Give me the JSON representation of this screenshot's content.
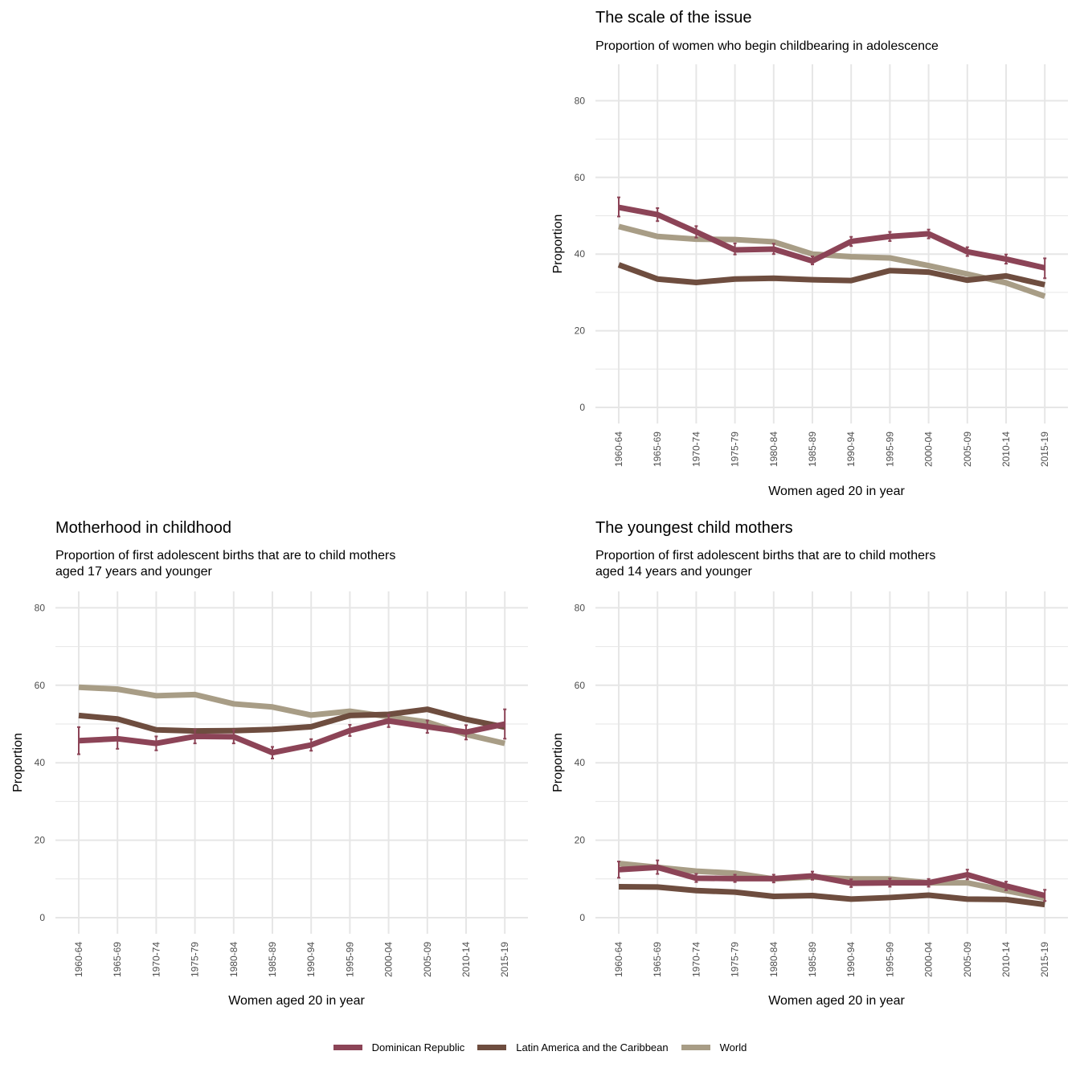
{
  "colors": {
    "Dominican Republic": "#8c4457",
    "Latin America and the Caribbean": "#6e4d3f",
    "World": "#a89d86",
    "grid": "#e6e6e6"
  },
  "legend": {
    "items": [
      {
        "label": "Dominican Republic"
      },
      {
        "label": "Latin America and the Caribbean"
      },
      {
        "label": "World"
      }
    ]
  },
  "chart_data": [
    {
      "type": "line",
      "title": "The scale of the issue",
      "subtitle": "Proportion of women who begin childbearing in adolescence",
      "xlabel": "Women aged 20 in year",
      "ylabel": "Proportion",
      "ylim": [
        0,
        80
      ],
      "yticks": [
        0,
        20,
        40,
        60,
        80
      ],
      "grid": true,
      "categories": [
        "1960-64",
        "1965-69",
        "1970-74",
        "1975-79",
        "1980-84",
        "1985-89",
        "1990-94",
        "1995-99",
        "2000-04",
        "2005-09",
        "2010-14",
        "2015-19"
      ],
      "series": [
        {
          "name": "World",
          "values": [
            47.2,
            44.6,
            43.9,
            43.8,
            43.2,
            40.0,
            39.3,
            39.0,
            37.0,
            34.8,
            32.5,
            29.0
          ]
        },
        {
          "name": "Latin America and the Caribbean",
          "values": [
            37.2,
            33.5,
            32.6,
            33.5,
            33.7,
            33.3,
            33.1,
            35.7,
            35.3,
            33.2,
            34.3,
            32.0
          ]
        },
        {
          "name": "Dominican Republic",
          "values": [
            52.2,
            50.3,
            45.8,
            41.1,
            41.3,
            38.2,
            43.3,
            44.6,
            45.3,
            40.6,
            38.7,
            36.4
          ],
          "error": [
            [
              49.8,
              54.8
            ],
            [
              48.6,
              52.0
            ],
            [
              44.3,
              47.3
            ],
            [
              39.9,
              42.8
            ],
            [
              40.0,
              42.7
            ],
            [
              37.3,
              39.4
            ],
            [
              42.1,
              44.5
            ],
            [
              43.4,
              45.8
            ],
            [
              44.1,
              46.4
            ],
            [
              39.5,
              41.8
            ],
            [
              37.5,
              39.9
            ],
            [
              33.7,
              38.9
            ]
          ]
        }
      ]
    },
    {
      "type": "line",
      "title": "Motherhood in childhood",
      "subtitle": "Proportion of first adolescent births that are to child mothers\naged 17 years and younger",
      "xlabel": "Women aged 20 in year",
      "ylabel": "Proportion",
      "ylim": [
        0,
        80
      ],
      "yticks": [
        0,
        20,
        40,
        60,
        80
      ],
      "grid": true,
      "categories": [
        "1960-64",
        "1965-69",
        "1970-74",
        "1975-79",
        "1980-84",
        "1985-89",
        "1990-94",
        "1995-99",
        "2000-04",
        "2005-09",
        "2010-14",
        "2015-19"
      ],
      "series": [
        {
          "name": "World",
          "values": [
            59.5,
            59.0,
            57.3,
            57.6,
            55.2,
            54.4,
            52.3,
            53.3,
            51.9,
            50.5,
            47.3,
            45.0
          ]
        },
        {
          "name": "Latin America and the Caribbean",
          "values": [
            52.2,
            51.3,
            48.5,
            48.2,
            48.3,
            48.6,
            49.3,
            52.2,
            52.5,
            53.8,
            51.2,
            49.2
          ]
        },
        {
          "name": "Dominican Republic",
          "values": [
            45.7,
            46.2,
            45.0,
            46.8,
            46.7,
            42.6,
            44.6,
            48.3,
            50.8,
            49.3,
            47.9,
            50.0
          ],
          "error": [
            [
              42.2,
              49.2
            ],
            [
              43.6,
              48.9
            ],
            [
              43.2,
              46.8
            ],
            [
              45.0,
              48.6
            ],
            [
              45.0,
              48.5
            ],
            [
              41.1,
              44.1
            ],
            [
              43.1,
              46.1
            ],
            [
              46.9,
              49.8
            ],
            [
              49.2,
              52.4
            ],
            [
              47.7,
              50.9
            ],
            [
              46.0,
              49.7
            ],
            [
              46.2,
              53.8
            ]
          ]
        }
      ]
    },
    {
      "type": "line",
      "title": "The youngest child mothers",
      "subtitle": "Proportion of first adolescent births that are to child mothers\naged 14 years and younger",
      "xlabel": "Women aged 20 in year",
      "ylabel": "Proportion",
      "ylim": [
        0,
        80
      ],
      "yticks": [
        0,
        20,
        40,
        60,
        80
      ],
      "grid": true,
      "categories": [
        "1960-64",
        "1965-69",
        "1970-74",
        "1975-79",
        "1980-84",
        "1985-89",
        "1990-94",
        "1995-99",
        "2000-04",
        "2005-09",
        "2010-14",
        "2015-19"
      ],
      "series": [
        {
          "name": "World",
          "values": [
            14.0,
            13.0,
            12.0,
            11.5,
            10.0,
            10.5,
            10.0,
            10.0,
            9.0,
            9.0,
            7.0,
            5.0
          ]
        },
        {
          "name": "Latin America and the Caribbean",
          "values": [
            8.0,
            7.9,
            7.0,
            6.6,
            5.5,
            5.7,
            4.8,
            5.2,
            5.8,
            4.8,
            4.7,
            3.4
          ]
        },
        {
          "name": "Dominican Republic",
          "values": [
            12.4,
            13.0,
            10.2,
            10.1,
            10.1,
            10.8,
            8.9,
            9.0,
            9.0,
            11.1,
            8.2,
            5.7
          ],
          "error": [
            [
              10.3,
              14.5
            ],
            [
              11.3,
              14.8
            ],
            [
              9.2,
              11.3
            ],
            [
              9.2,
              11.1
            ],
            [
              9.1,
              11.1
            ],
            [
              9.8,
              11.9
            ],
            [
              7.9,
              9.9
            ],
            [
              8.0,
              10.1
            ],
            [
              8.0,
              10.0
            ],
            [
              9.9,
              12.4
            ],
            [
              7.1,
              9.3
            ],
            [
              4.3,
              7.2
            ]
          ]
        }
      ]
    }
  ]
}
